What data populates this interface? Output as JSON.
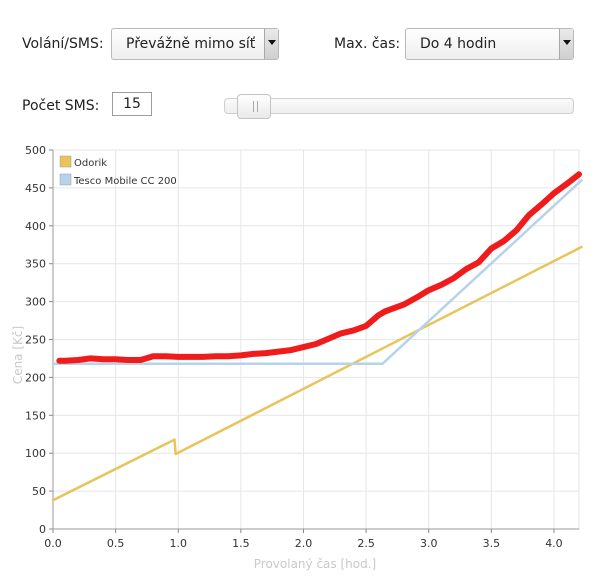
{
  "controls": {
    "calls_label": "Volání/SMS:",
    "calls_value": "Převážně mimo síť",
    "time_label": "Max. čas:",
    "time_value": "Do 4 hodin",
    "sms_label": "Počet SMS:",
    "sms_value": "15",
    "sms_slider_fraction": 0.03
  },
  "chart_data": {
    "type": "line",
    "xlabel": "Provolaný čas [hod.]",
    "ylabel": "Cena [Kč]",
    "xlim": [
      0,
      4.2
    ],
    "ylim": [
      0,
      500
    ],
    "x_ticks": [
      "0.0",
      "0.5",
      "1.0",
      "1.5",
      "2.0",
      "2.5",
      "3.0",
      "3.5",
      "4.0"
    ],
    "y_ticks": [
      "0",
      "50",
      "100",
      "150",
      "200",
      "250",
      "300",
      "350",
      "400",
      "450",
      "500"
    ],
    "grid": true,
    "legend_position": "top-left",
    "series": [
      {
        "name": "Odorik",
        "color": "#e8c45a",
        "x": [
          0,
          0.97,
          0.98,
          4.22
        ],
        "y": [
          38,
          118,
          99,
          372
        ]
      },
      {
        "name": "Tesco Mobile CC 200",
        "color": "#b7d3ea",
        "x": [
          0,
          2.63,
          4.22
        ],
        "y": [
          218,
          218,
          460
        ]
      },
      {
        "name": "",
        "color": "#f01b1b",
        "x": [
          0.05,
          0.1,
          0.2,
          0.3,
          0.4,
          0.5,
          0.6,
          0.7,
          0.8,
          0.9,
          1.0,
          1.1,
          1.2,
          1.3,
          1.4,
          1.5,
          1.6,
          1.7,
          1.8,
          1.9,
          2.0,
          2.1,
          2.2,
          2.3,
          2.4,
          2.5,
          2.6,
          2.65,
          2.7,
          2.8,
          2.9,
          3.0,
          3.1,
          3.2,
          3.3,
          3.4,
          3.5,
          3.6,
          3.7,
          3.8,
          3.9,
          4.0,
          4.1,
          4.2
        ],
        "y": [
          222,
          222,
          223,
          225,
          224,
          224,
          223,
          223,
          228,
          228,
          227,
          227,
          227,
          228,
          228,
          229,
          231,
          232,
          234,
          236,
          240,
          244,
          251,
          258,
          262,
          268,
          282,
          287,
          290,
          296,
          305,
          315,
          322,
          331,
          343,
          352,
          370,
          380,
          394,
          414,
          428,
          443,
          455,
          468
        ]
      }
    ]
  }
}
